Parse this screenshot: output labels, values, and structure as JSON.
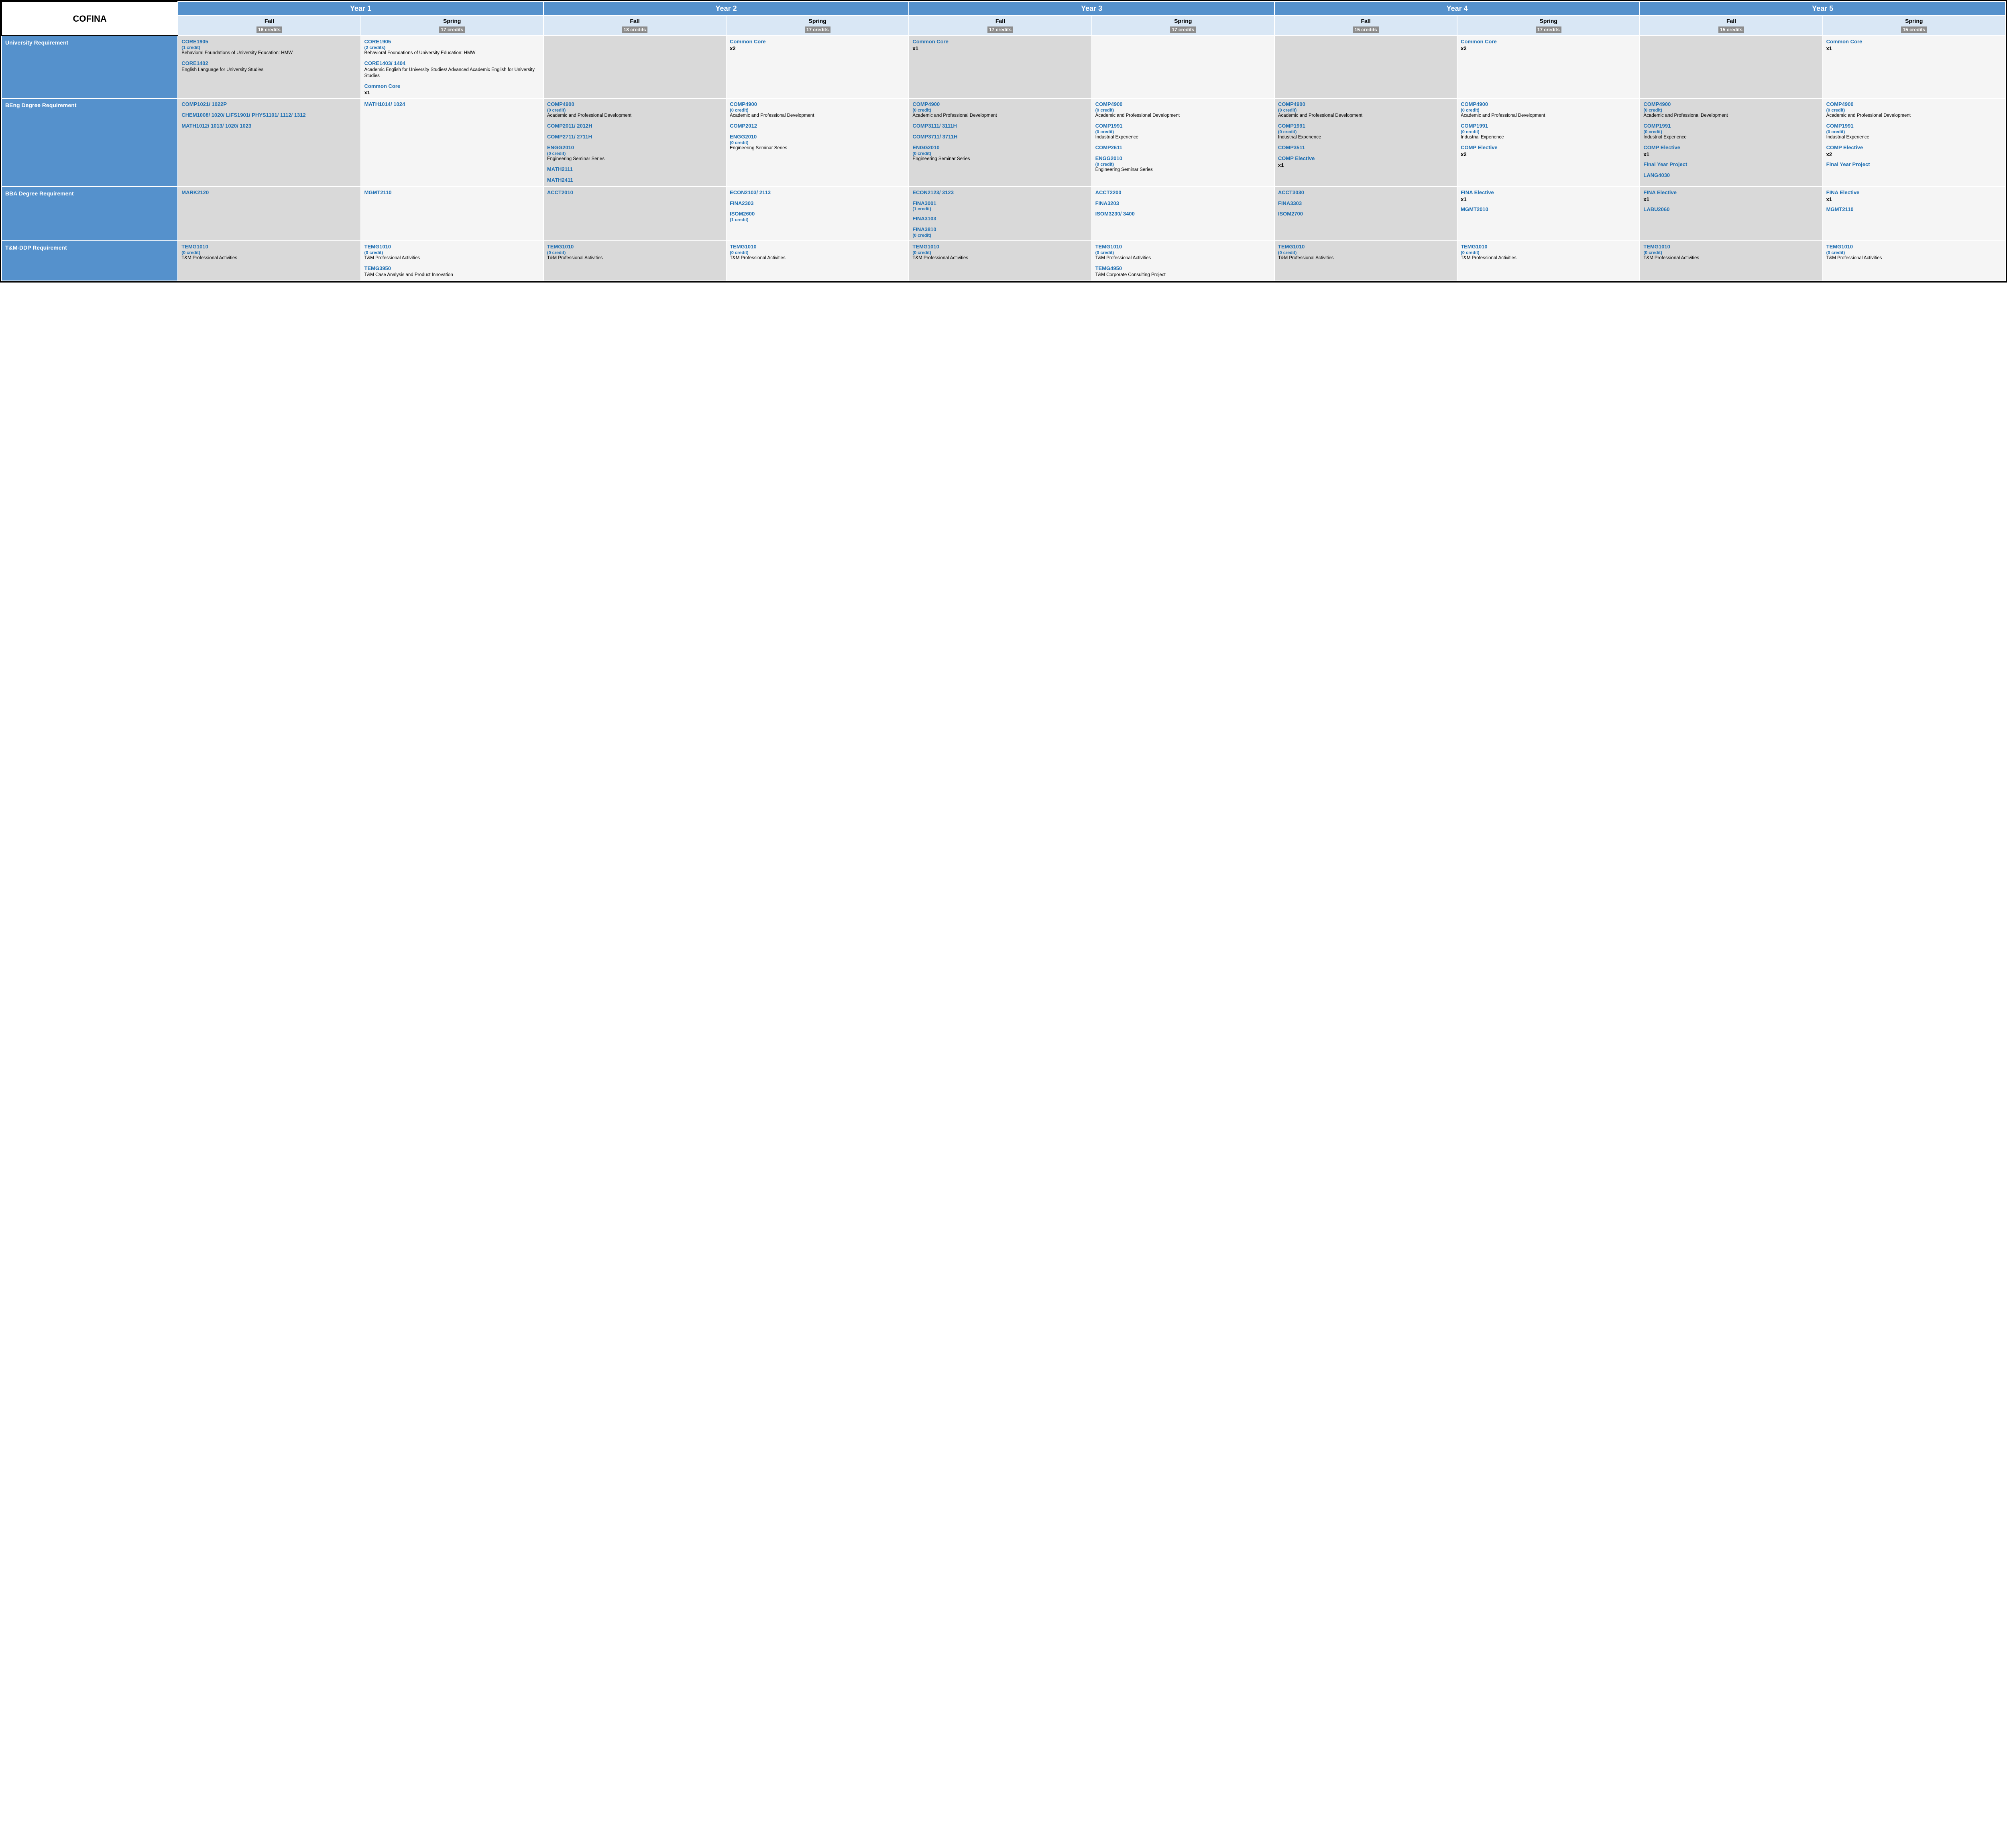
{
  "brand": "COFINA",
  "years": [
    "Year 1",
    "Year 2",
    "Year 3",
    "Year 4",
    "Year 5"
  ],
  "semesters": [
    {
      "name": "Fall",
      "credits": "16 credits"
    },
    {
      "name": "Spring",
      "credits": "17 credits"
    },
    {
      "name": "Fall",
      "credits": "18 credits"
    },
    {
      "name": "Spring",
      "credits": "17 credits"
    },
    {
      "name": "Fall",
      "credits": "17 credits"
    },
    {
      "name": "Spring",
      "credits": "17 credits"
    },
    {
      "name": "Fall",
      "credits": "15 credits"
    },
    {
      "name": "Spring",
      "credits": "17 credits"
    },
    {
      "name": "Fall",
      "credits": "15 credits"
    },
    {
      "name": "Spring",
      "credits": "15 credits"
    }
  ],
  "rows": [
    {
      "label": "University Requirement",
      "cells": [
        {
          "shade": "a",
          "courses": [
            {
              "code": "CORE1905",
              "credit": "(1 credit)",
              "desc": "Behavioral Foundations of University Education: HMW"
            },
            {
              "code": "CORE1402",
              "desc": "English Language for University Studies"
            }
          ]
        },
        {
          "shade": "b",
          "courses": [
            {
              "code": "CORE1905",
              "credit": "(2 credits)",
              "desc": "Behavioral Foundations of University Education: HMW"
            },
            {
              "code": "CORE1403/ 1404",
              "desc": "Academic English for University Studies/ Advanced Academic English for University Studies"
            },
            {
              "code": "Common Core",
              "mult": "x1"
            }
          ]
        },
        {
          "shade": "a",
          "courses": []
        },
        {
          "shade": "b",
          "courses": [
            {
              "code": "Common Core",
              "mult": "x2"
            }
          ]
        },
        {
          "shade": "a",
          "courses": [
            {
              "code": "Common Core",
              "mult": "x1"
            }
          ]
        },
        {
          "shade": "b",
          "courses": []
        },
        {
          "shade": "a",
          "courses": []
        },
        {
          "shade": "b",
          "courses": [
            {
              "code": "Common Core",
              "mult": "x2"
            }
          ]
        },
        {
          "shade": "a",
          "courses": []
        },
        {
          "shade": "b",
          "courses": [
            {
              "code": "Common Core",
              "mult": "x1"
            }
          ]
        }
      ]
    },
    {
      "label": "BEng Degree Requirement",
      "cells": [
        {
          "shade": "a",
          "courses": [
            {
              "code": "COMP1021/ 1022P"
            },
            {
              "code": "CHEM1008/ 1020/ LIFS1901/ PHYS1101/ 1112/ 1312"
            },
            {
              "code": "MATH1012/ 1013/ 1020/ 1023"
            }
          ]
        },
        {
          "shade": "b",
          "courses": [
            {
              "code": "MATH1014/ 1024"
            }
          ]
        },
        {
          "shade": "a",
          "courses": [
            {
              "code": "COMP4900",
              "credit": "(0 credit)",
              "desc": "Academic and Professional Development"
            },
            {
              "code": "COMP2011/ 2012H"
            },
            {
              "code": "COMP2711/ 2711H"
            },
            {
              "code": "ENGG2010",
              "credit": "(0 credit)",
              "desc": "Engineering Seminar Series"
            },
            {
              "code": "MATH2111"
            },
            {
              "code": "MATH2411"
            }
          ]
        },
        {
          "shade": "b",
          "courses": [
            {
              "code": "COMP4900",
              "credit": "(0 credit)",
              "desc": "Academic and Professional Development"
            },
            {
              "code": "COMP2012"
            },
            {
              "code": "ENGG2010",
              "credit": "(0 credit)",
              "desc": "Engineering Seminar Series"
            }
          ]
        },
        {
          "shade": "a",
          "courses": [
            {
              "code": "COMP4900",
              "credit": "(0 credit)",
              "desc": "Academic and Professional Development"
            },
            {
              "code": "COMP3111/ 3111H"
            },
            {
              "code": "COMP3711/ 3711H"
            },
            {
              "code": "ENGG2010",
              "credit": "(0 credit)",
              "desc": "Engineering Seminar Series"
            }
          ]
        },
        {
          "shade": "b",
          "courses": [
            {
              "code": "COMP4900",
              "credit": "(0 credit)",
              "desc": "Academic and Professional Development"
            },
            {
              "code": "COMP1991",
              "credit": "(0 credit)",
              "desc": "Industrial Experience"
            },
            {
              "code": "COMP2611"
            },
            {
              "code": "ENGG2010",
              "credit": "(0 credit)",
              "desc": "Engineering Seminar Series"
            }
          ]
        },
        {
          "shade": "a",
          "courses": [
            {
              "code": "COMP4900",
              "credit": "(0 credit)",
              "desc": "Academic and Professional Development"
            },
            {
              "code": "COMP1991",
              "credit": "(0 credit)",
              "desc": "Industrial Experience"
            },
            {
              "code": "COMP3511"
            },
            {
              "code": "COMP Elective",
              "mult": "x1"
            }
          ]
        },
        {
          "shade": "b",
          "courses": [
            {
              "code": "COMP4900",
              "credit": "(0 credit)",
              "desc": "Academic and Professional Development"
            },
            {
              "code": "COMP1991",
              "credit": "(0 credit)",
              "desc": "Industrial Experience"
            },
            {
              "code": "COMP Elective",
              "mult": "x2"
            }
          ]
        },
        {
          "shade": "a",
          "courses": [
            {
              "code": "COMP4900",
              "credit": "(0 credit)",
              "desc": "Academic and Professional Development"
            },
            {
              "code": "COMP1991",
              "credit": "(0 credit)",
              "desc": "Industrial Experience"
            },
            {
              "code": "COMP Elective",
              "mult": "x1"
            },
            {
              "code": "Final Year Project"
            },
            {
              "code": "LANG4030"
            }
          ]
        },
        {
          "shade": "b",
          "courses": [
            {
              "code": "COMP4900",
              "credit": "(0 credit)",
              "desc": "Academic and Professional Development"
            },
            {
              "code": "COMP1991",
              "credit": "(0 credit)",
              "desc": "Industrial Experience"
            },
            {
              "code": "COMP Elective",
              "mult": "x2"
            },
            {
              "code": "Final Year Project"
            }
          ]
        }
      ]
    },
    {
      "label": "BBA Degree Requirement",
      "cells": [
        {
          "shade": "a",
          "courses": [
            {
              "code": "MARK2120"
            }
          ]
        },
        {
          "shade": "b",
          "courses": [
            {
              "code": "MGMT2110"
            }
          ]
        },
        {
          "shade": "a",
          "courses": [
            {
              "code": "ACCT2010"
            }
          ]
        },
        {
          "shade": "b",
          "courses": [
            {
              "code": "ECON2103/ 2113"
            },
            {
              "code": "FINA2303"
            },
            {
              "code": "ISOM2600",
              "credit": "(1 credit)"
            }
          ]
        },
        {
          "shade": "a",
          "courses": [
            {
              "code": "ECON2123/ 3123"
            },
            {
              "code": "FINA3001",
              "credit": "(1 credit)"
            },
            {
              "code": "FINA3103"
            },
            {
              "code": "FINA3810",
              "credit": "(0 credit)"
            }
          ]
        },
        {
          "shade": "b",
          "courses": [
            {
              "code": "ACCT2200"
            },
            {
              "code": "FINA3203"
            },
            {
              "code": "ISOM3230/ 3400"
            }
          ]
        },
        {
          "shade": "a",
          "courses": [
            {
              "code": "ACCT3030"
            },
            {
              "code": "FINA3303"
            },
            {
              "code": "ISOM2700"
            }
          ]
        },
        {
          "shade": "b",
          "courses": [
            {
              "code": "FINA Elective",
              "mult": "x1"
            },
            {
              "code": "MGMT2010"
            }
          ]
        },
        {
          "shade": "a",
          "courses": [
            {
              "code": "FINA Elective",
              "mult": "x1"
            },
            {
              "code": "LABU2060"
            }
          ]
        },
        {
          "shade": "b",
          "courses": [
            {
              "code": "FINA Elective",
              "mult": "x1"
            },
            {
              "code": "MGMT2110"
            }
          ]
        }
      ]
    },
    {
      "label": "T&M-DDP Requirement",
      "cells": [
        {
          "shade": "a",
          "courses": [
            {
              "code": "TEMG1010",
              "credit": "(0 credit)",
              "desc": "T&M Professional Activities"
            }
          ]
        },
        {
          "shade": "b",
          "courses": [
            {
              "code": "TEMG1010",
              "credit": "(0 credit)",
              "desc": "T&M Professional Activities"
            },
            {
              "code": "TEMG3950",
              "desc": "T&M Case Analysis and Product Innovation"
            }
          ]
        },
        {
          "shade": "a",
          "courses": [
            {
              "code": "TEMG1010",
              "credit": "(0 credit)",
              "desc": "T&M Professional Activities"
            }
          ]
        },
        {
          "shade": "b",
          "courses": [
            {
              "code": "TEMG1010",
              "credit": "(0 credit)",
              "desc": "T&M Professional Activities"
            }
          ]
        },
        {
          "shade": "a",
          "courses": [
            {
              "code": "TEMG1010",
              "credit": "(0 credit)",
              "desc": "T&M Professional Activities"
            }
          ]
        },
        {
          "shade": "b",
          "courses": [
            {
              "code": "TEMG1010",
              "credit": "(0 credit)",
              "desc": "T&M Professional Activities"
            },
            {
              "code": "TEMG4950",
              "desc": "T&M Corporate Consulting Project"
            }
          ]
        },
        {
          "shade": "a",
          "courses": [
            {
              "code": "TEMG1010",
              "credit": "(0 credit)",
              "desc": "T&M Professional Activities"
            }
          ]
        },
        {
          "shade": "b",
          "courses": [
            {
              "code": "TEMG1010",
              "credit": "(0 credit)",
              "desc": "T&M Professional Activities"
            }
          ]
        },
        {
          "shade": "a",
          "courses": [
            {
              "code": "TEMG1010",
              "credit": "(0 credit)",
              "desc": "T&M Professional Activities"
            }
          ]
        },
        {
          "shade": "b",
          "courses": [
            {
              "code": "TEMG1010",
              "credit": "(0 credit)",
              "desc": "T&M Professional Activities"
            }
          ]
        }
      ]
    }
  ]
}
